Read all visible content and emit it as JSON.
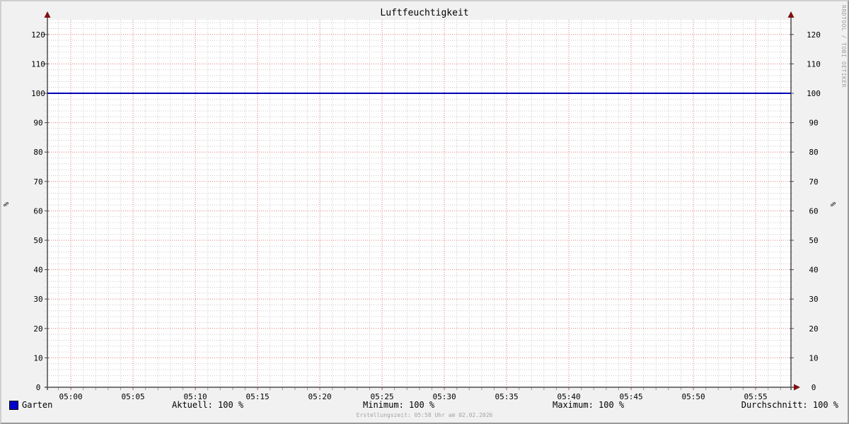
{
  "title": "Luftfeuchtigkeit",
  "watermark": "RRDTOOL / TOBI OETIKER",
  "footer": "Erstellungszeit: 05:58 Uhr am 02.02.2026",
  "legend": {
    "series": {
      "label": "Garten",
      "color": "#0000cc"
    },
    "stats": {
      "aktuell": "Aktuell: 100 %",
      "minimum": "Minimum: 100 %",
      "maximum": "Maximum: 100 %",
      "durchschnitt": "Durchschnitt: 100 %"
    }
  },
  "chart_data": {
    "type": "line",
    "title": "Luftfeuchtigkeit",
    "ylabel": "%",
    "ylabel_right": "%",
    "ylim": [
      0,
      125
    ],
    "y_major_step": 10,
    "y_minor_step": 2,
    "y_tick_labels": [
      "0",
      "10",
      "20",
      "30",
      "40",
      "50",
      "60",
      "70",
      "80",
      "90",
      "100",
      "110",
      "120"
    ],
    "x_tick_labels": [
      "05:00",
      "05:05",
      "05:10",
      "05:15",
      "05:20",
      "05:25",
      "05:30",
      "05:35",
      "05:40",
      "05:45",
      "05:50",
      "05:55"
    ],
    "x_major_step_minutes": 5,
    "x_minor_step_minutes": 1,
    "x_range_minutes": [
      -1.88,
      57.84
    ],
    "grid": true,
    "legend_position": "bottom",
    "series": [
      {
        "name": "Garten",
        "color": "#0000b4",
        "width": 2,
        "value": 100,
        "shape": "constant-horizontal-line"
      }
    ],
    "stats": {
      "aktuell": 100,
      "minimum": 100,
      "maximum": 100,
      "durchschnitt": 100,
      "unit": "%"
    },
    "colors": {
      "background": "#f1f1f1",
      "canvas": "#ffffff",
      "major_grid": "#dd7777",
      "minor_grid": "#c9c9c9",
      "axis": "#4d4d4d",
      "arrow": "#7f1010",
      "x_major_tick": "#b05a5a",
      "x_minor_tick": "#9a9a9a",
      "text": "#000000"
    }
  }
}
